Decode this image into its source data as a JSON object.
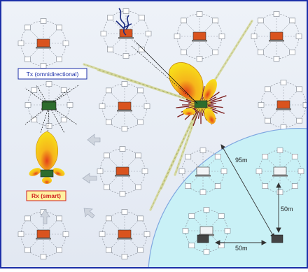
{
  "labels": {
    "tx": "Tx (omnidirectional)",
    "rx": "Rx (smart)",
    "d1": "95m",
    "d2": "50m",
    "d3": "50m"
  },
  "colors": {
    "frame": "#1c2fa8",
    "background": "#e9eef6",
    "region": "#c9f1f6",
    "region_edge": "#7fa7e0",
    "lobe_outer": "#f7e11a",
    "lobe_mid": "#f6b51b",
    "lobe_core": "#e2401a",
    "beam": "#d5d89a",
    "tx_label_text": "#1c2fa8",
    "rx_label_bg": "#fff2a0",
    "rx_label_text": "#d02020"
  },
  "icons": {
    "node": "laptop-icon",
    "peer": "device-icon",
    "antenna": "antenna-icon",
    "arrow": "arrow-icon"
  }
}
